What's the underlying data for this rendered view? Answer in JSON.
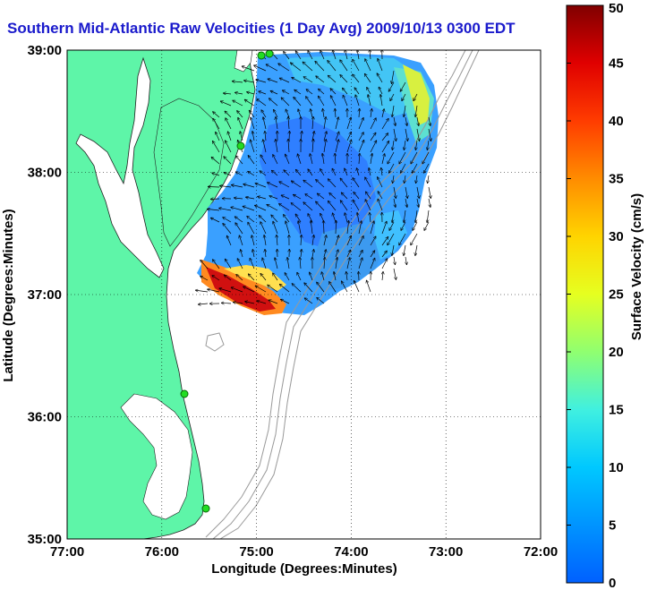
{
  "title": "Southern Mid-Atlantic Raw Velocities (1 Day Avg) 2009/10/13 0300 EDT",
  "map": {
    "xlabel": "Longitude (Degrees:Minutes)",
    "ylabel": "Latitude (Degrees:Minutes)",
    "x_ticks": [
      "77:00",
      "76:00",
      "75:00",
      "74:00",
      "73:00",
      "72:00"
    ],
    "y_ticks": [
      "39:00",
      "38:00",
      "37:00",
      "36:00",
      "35:00"
    ],
    "lon_range": [
      -77,
      -72
    ],
    "lat_range": [
      35,
      39
    ],
    "grid": "dotted",
    "colors": {
      "land": "#5ef5a8",
      "water": "#ffffff",
      "bathymetry": "#999999",
      "station": "#22dd22",
      "title": "#1a1acc"
    }
  },
  "colorbar": {
    "label": "Surface Velocity (cm/s)",
    "ticks": [
      "50",
      "45",
      "40",
      "35",
      "30",
      "25",
      "20",
      "15",
      "10",
      "5",
      "0"
    ],
    "range": [
      0,
      50
    ],
    "colormap": "jet"
  }
}
